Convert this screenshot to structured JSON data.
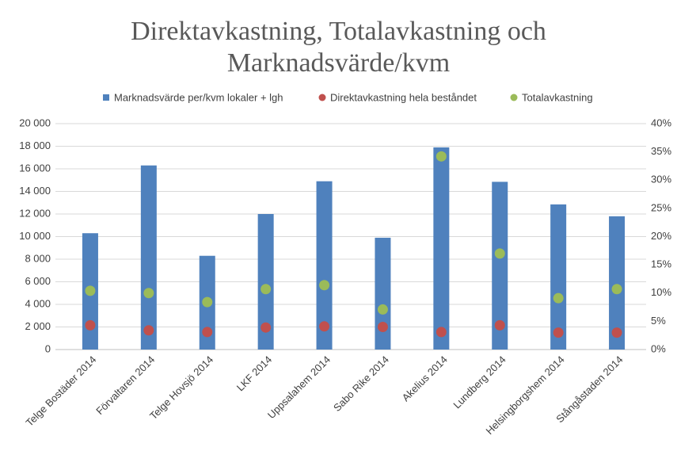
{
  "chart_data": {
    "type": "bar",
    "title": "Direktavkastning, Totalavkastning och Marknadsvärde/kvm",
    "categories": [
      "Telge Bostäder 2014",
      "Förvaltaren 2014",
      "Telge Hovsjö 2014",
      "LKF 2014",
      "Uppsalahem 2014",
      "Sabo Rike 2014",
      "Akelius 2014",
      "Lundberg 2014",
      "Helsingborgshem 2014",
      "Stångåstaden 2014"
    ],
    "series": [
      {
        "name": "Marknadsvärde per/kvm lokaler + lgh",
        "type": "bar",
        "color": "#4f81bd",
        "values": [
          10300,
          16300,
          8300,
          12000,
          14900,
          9900,
          17900,
          14850,
          12850,
          11800
        ]
      },
      {
        "name": "Direktavkastning hela beståndet",
        "type": "scatter",
        "axis": "y2",
        "color": "#c0504d",
        "values": [
          4.3,
          3.4,
          3.1,
          3.9,
          4.1,
          4.0,
          3.1,
          4.3,
          3.0,
          3.0
        ]
      },
      {
        "name": "Totalavkastning",
        "type": "scatter",
        "axis": "y2",
        "color": "#9bbb59",
        "values": [
          10.4,
          10.0,
          8.4,
          10.7,
          11.4,
          7.1,
          34.2,
          17.0,
          9.1,
          10.7
        ]
      }
    ],
    "ylim": [
      0,
      20000
    ],
    "yticks": [
      0,
      {
        "value": 2000,
        "label": "2 000"
      },
      {
        "value": 4000,
        "label": "4 000"
      },
      {
        "value": 6000,
        "label": "6 000"
      },
      {
        "value": 8000,
        "label": "8 000"
      },
      {
        "value": 10000,
        "label": "10 000"
      },
      {
        "value": 12000,
        "label": "12 000"
      },
      {
        "value": 14000,
        "label": "14 000"
      },
      {
        "value": 16000,
        "label": "16 000"
      },
      {
        "value": 18000,
        "label": "18 000"
      },
      {
        "value": 20000,
        "label": "20 000"
      }
    ],
    "y2lim": [
      0,
      40
    ],
    "y2ticks": [
      {
        "value": 0,
        "label": "0%"
      },
      {
        "value": 5,
        "label": "5%"
      },
      {
        "value": 10,
        "label": "10%"
      },
      {
        "value": 15,
        "label": "15%"
      },
      {
        "value": 20,
        "label": "20%"
      },
      {
        "value": 25,
        "label": "25%"
      },
      {
        "value": 30,
        "label": "30%"
      },
      {
        "value": 35,
        "label": "35%"
      },
      {
        "value": 40,
        "label": "40%"
      }
    ],
    "grid": true,
    "legend": "top"
  }
}
